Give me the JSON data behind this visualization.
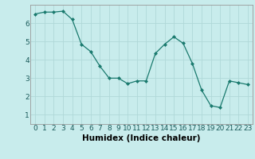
{
  "x": [
    0,
    1,
    2,
    3,
    4,
    5,
    6,
    7,
    8,
    9,
    10,
    11,
    12,
    13,
    14,
    15,
    16,
    17,
    18,
    19,
    20,
    21,
    22,
    23
  ],
  "y": [
    6.5,
    6.6,
    6.6,
    6.65,
    6.2,
    4.85,
    4.45,
    3.65,
    3.0,
    3.0,
    2.7,
    2.85,
    2.85,
    4.35,
    4.85,
    5.25,
    4.9,
    3.8,
    2.35,
    1.5,
    1.4,
    2.85,
    2.75,
    2.65
  ],
  "line_color": "#1a7a6e",
  "marker": "D",
  "marker_size": 2,
  "bg_color": "#c8ecec",
  "grid_color": "#b0d8d8",
  "xlabel": "Humidex (Indice chaleur)",
  "xlim": [
    -0.5,
    23.5
  ],
  "ylim": [
    0.5,
    7.0
  ],
  "yticks": [
    1,
    2,
    3,
    4,
    5,
    6
  ],
  "xticks": [
    0,
    1,
    2,
    3,
    4,
    5,
    6,
    7,
    8,
    9,
    10,
    11,
    12,
    13,
    14,
    15,
    16,
    17,
    18,
    19,
    20,
    21,
    22,
    23
  ],
  "xlabel_fontsize": 7.5,
  "tick_fontsize": 6.5
}
